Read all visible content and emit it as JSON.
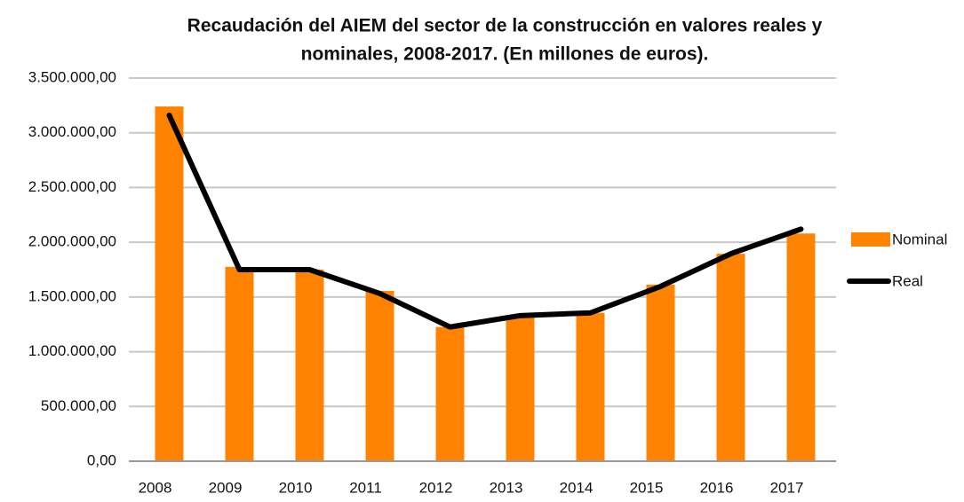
{
  "chart_data": {
    "type": "bar",
    "title": [
      "Recaudación del AIEM del sector de la construcción en valores reales y",
      "nominales, 2008-2017. (En millones de euros)."
    ],
    "categories": [
      "2008",
      "2009",
      "2010",
      "2011",
      "2012",
      "2013",
      "2014",
      "2015",
      "2016",
      "2017"
    ],
    "series": [
      {
        "name": "Nominal",
        "type": "bar",
        "color": "#ff8200",
        "values": [
          3240000,
          1775000,
          1750000,
          1556000,
          1226000,
          1315000,
          1355000,
          1613000,
          1895000,
          2080000
        ]
      },
      {
        "name": "Real",
        "type": "line",
        "color": "#000000",
        "values": [
          3160000,
          1750000,
          1750000,
          1532000,
          1226000,
          1330000,
          1355000,
          1597000,
          1895000,
          2120000
        ]
      }
    ],
    "ylim": [
      0,
      3500000
    ],
    "yticks": [
      {
        "value": 0,
        "label": "0,00"
      },
      {
        "value": 500000,
        "label": "500.000,00"
      },
      {
        "value": 1000000,
        "label": "1.000.000,00"
      },
      {
        "value": 1500000,
        "label": "1.500.000,00"
      },
      {
        "value": 2000000,
        "label": "2.000.000,00"
      },
      {
        "value": 2500000,
        "label": "2.500.000,00"
      },
      {
        "value": 3000000,
        "label": "3.000.000,00"
      },
      {
        "value": 3500000,
        "label": "3.500.000,00"
      }
    ],
    "grid": true,
    "legend": "right"
  }
}
